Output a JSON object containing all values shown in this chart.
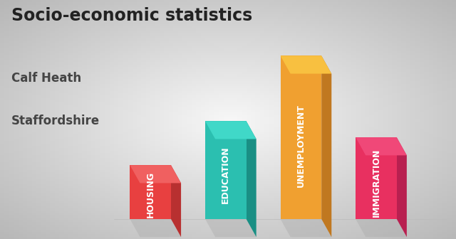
{
  "title": "Socio-economic statistics",
  "subtitle1": "Calf Heath",
  "subtitle2": "Staffordshire",
  "categories": [
    "HOUSING",
    "EDUCATION",
    "UNEMPLOYMENT",
    "IMMIGRATION"
  ],
  "values": [
    0.33,
    0.6,
    1.0,
    0.5
  ],
  "front_colors": [
    "#E84040",
    "#2BBFB0",
    "#F0A030",
    "#E83060"
  ],
  "right_colors": [
    "#B83030",
    "#1A8F84",
    "#C07820",
    "#B82050"
  ],
  "top_colors": [
    "#F06060",
    "#40D8C8",
    "#F8C040",
    "#F04878"
  ],
  "title_fontsize": 17,
  "subtitle_fontsize": 12,
  "label_fontsize": 9,
  "bg_color": "#D8D8D8"
}
